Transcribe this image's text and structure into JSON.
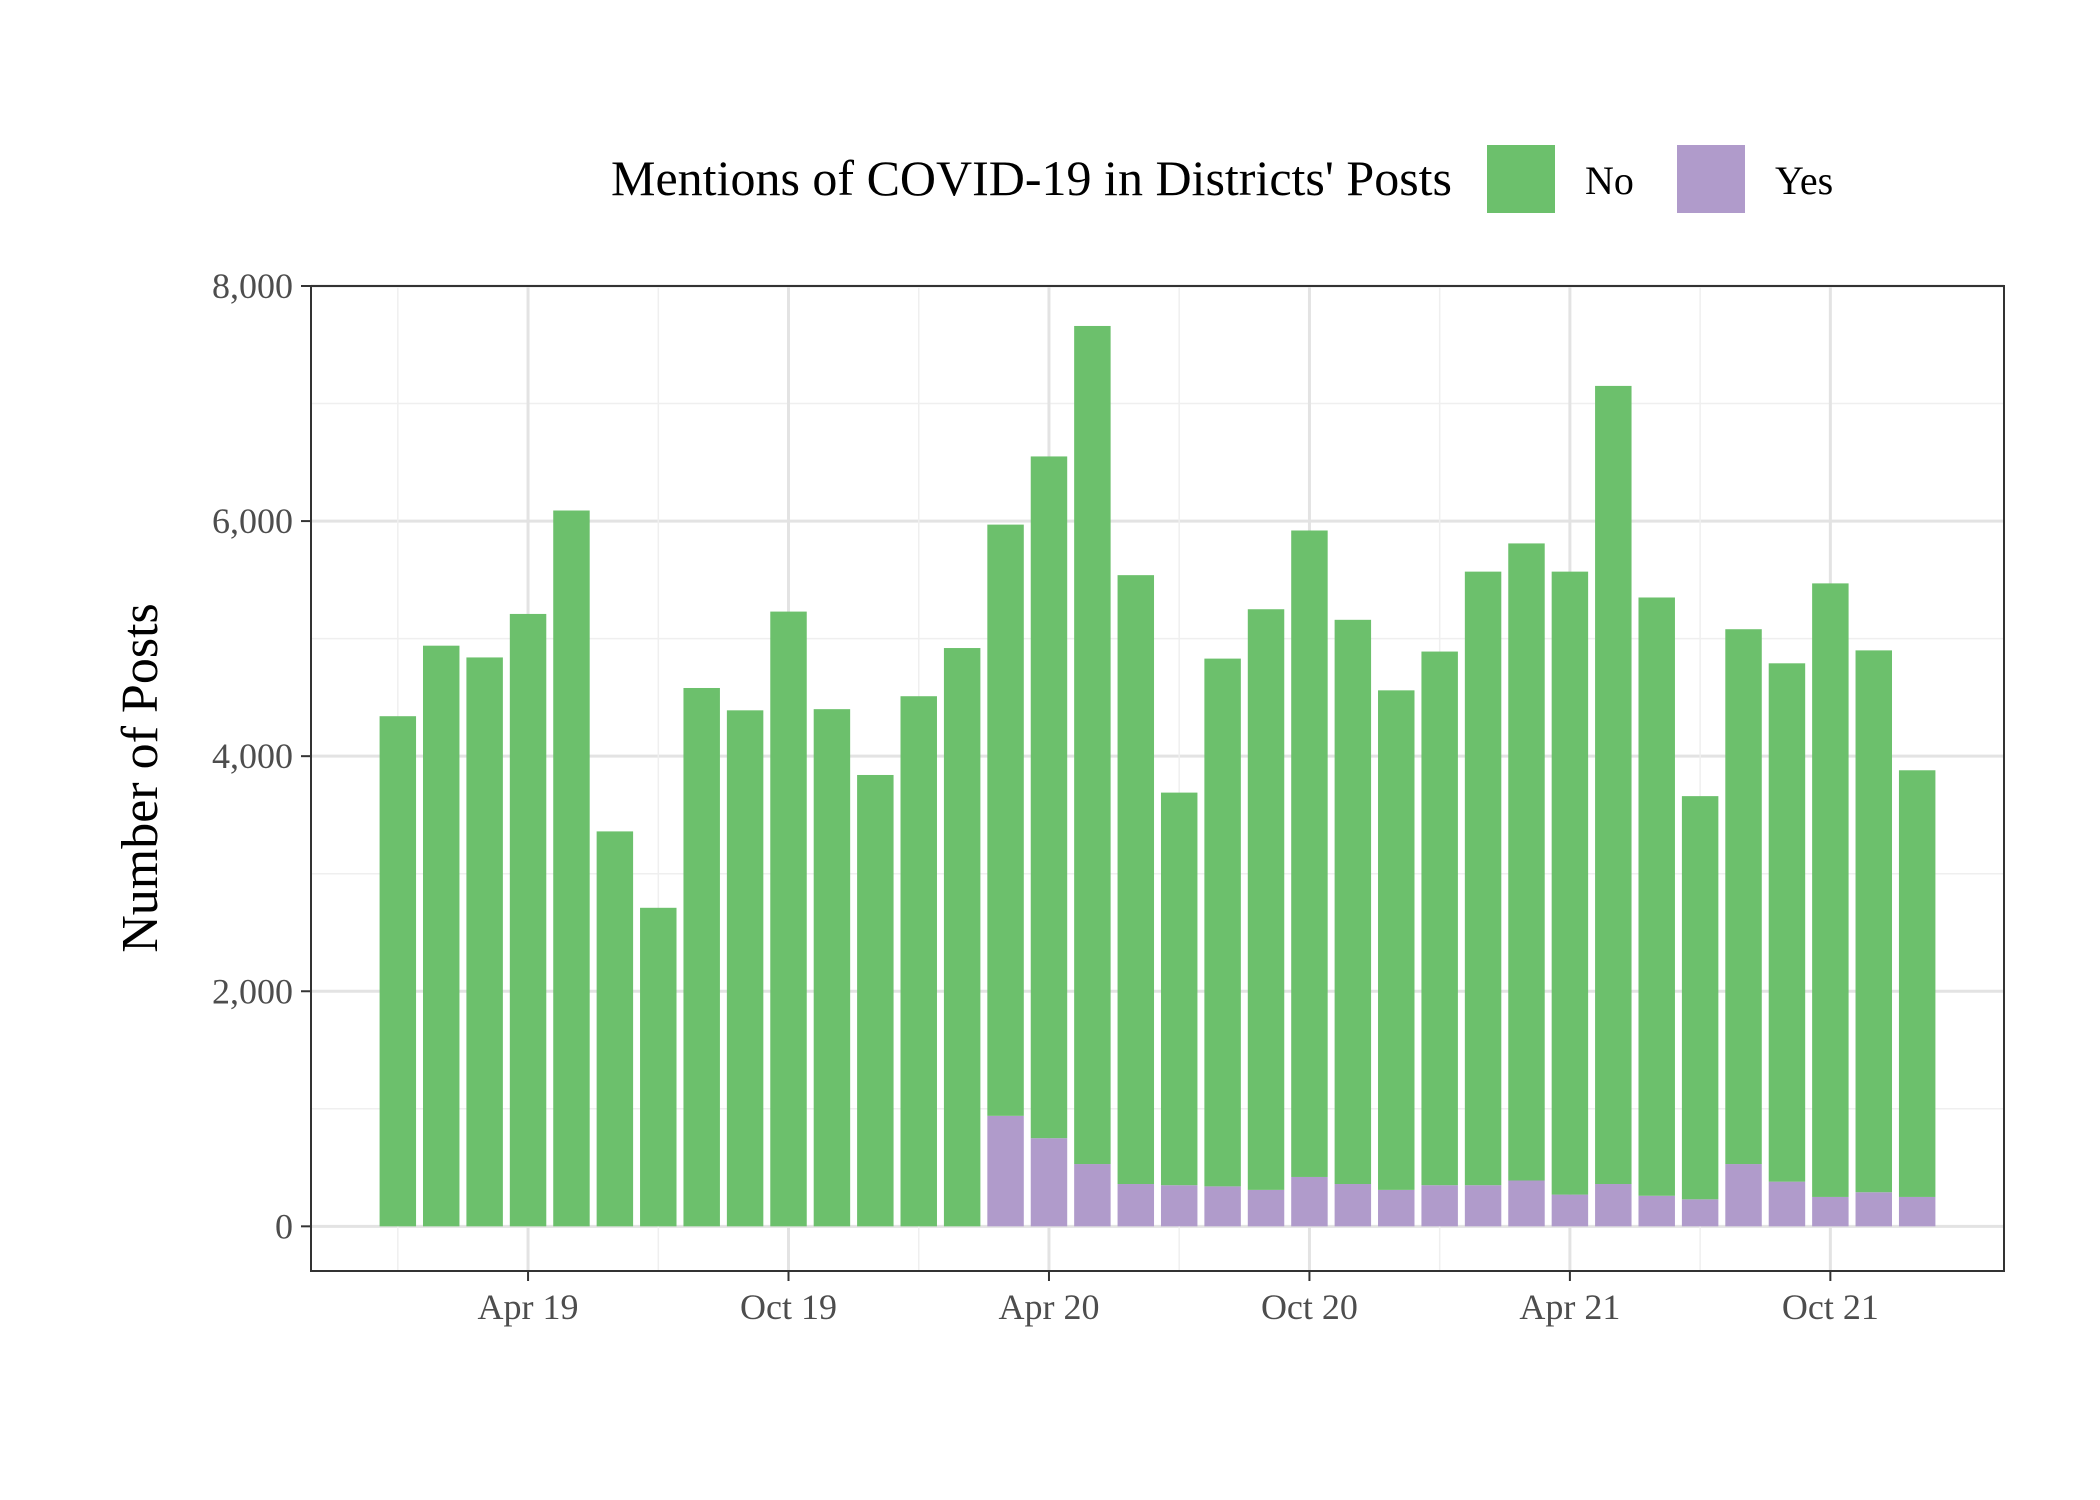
{
  "chart_data": {
    "type": "bar",
    "stacked": true,
    "ylabel": "Number of Posts",
    "ylim": [
      -380,
      8000
    ],
    "yticks": [
      0,
      2000,
      4000,
      6000,
      8000
    ],
    "ytick_labels": [
      "0",
      "2,000",
      "4,000",
      "6,000",
      "8,000"
    ],
    "x_start": "2019-01",
    "x_step": "1 month",
    "x": [
      "2019-01",
      "2019-02",
      "2019-03",
      "2019-04",
      "2019-05",
      "2019-06",
      "2019-07",
      "2019-08",
      "2019-09",
      "2019-10",
      "2019-11",
      "2019-12",
      "2020-01",
      "2020-02",
      "2020-03",
      "2020-04",
      "2020-05",
      "2020-06",
      "2020-07",
      "2020-08",
      "2020-09",
      "2020-10",
      "2020-11",
      "2020-12",
      "2021-01",
      "2021-02",
      "2021-03",
      "2021-04",
      "2021-05",
      "2021-06",
      "2021-07",
      "2021-08",
      "2021-09",
      "2021-10",
      "2021-11",
      "2021-12"
    ],
    "xlim": [
      "2018-11",
      "2022-02"
    ],
    "xticks": [
      "2019-04",
      "2019-10",
      "2020-04",
      "2020-10",
      "2021-04",
      "2021-10"
    ],
    "xtick_labels": [
      "Apr 19",
      "Oct 19",
      "Apr 20",
      "Oct 20",
      "Apr 21",
      "Oct 21"
    ],
    "grid": true,
    "legend": {
      "title": "Mentions of COVID-19 in Districts' Posts",
      "position": "top"
    },
    "series": [
      {
        "name": "Yes",
        "color": "#b09bcb",
        "values": [
          0,
          0,
          0,
          0,
          0,
          0,
          0,
          0,
          0,
          0,
          0,
          0,
          0,
          0,
          940,
          750,
          530,
          360,
          350,
          340,
          310,
          420,
          360,
          310,
          350,
          350,
          390,
          270,
          360,
          260,
          230,
          530,
          380,
          250,
          290,
          250
        ]
      },
      {
        "name": "No",
        "color": "#6cc06c",
        "values": [
          4340,
          4940,
          4840,
          5210,
          6090,
          3360,
          2710,
          4580,
          4390,
          5230,
          4400,
          3840,
          4510,
          4920,
          5030,
          5800,
          7130,
          5180,
          3340,
          4490,
          4940,
          5500,
          4800,
          4250,
          4540,
          5220,
          5420,
          5300,
          6790,
          5090,
          3430,
          4550,
          4410,
          5220,
          4610,
          3630
        ]
      }
    ]
  }
}
